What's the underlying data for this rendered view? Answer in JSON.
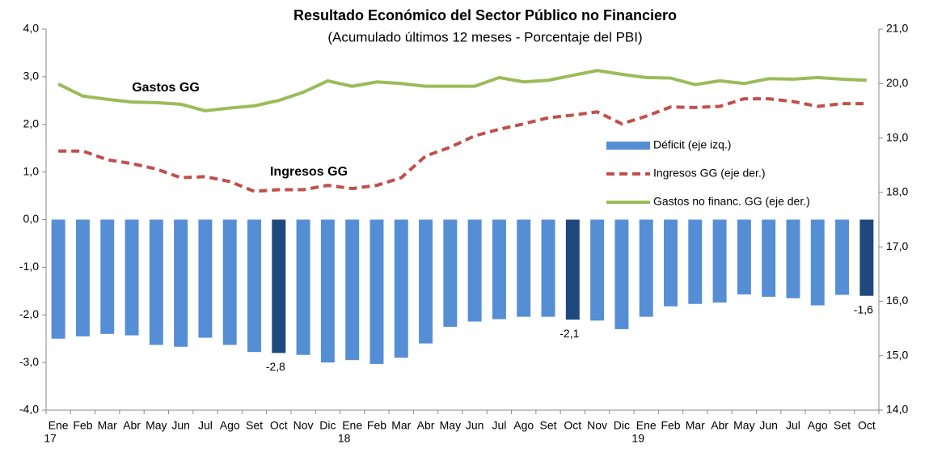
{
  "chart_data": {
    "type": "bar",
    "title": "Resultado Económico del Sector Público no Financiero",
    "subtitle": "(Acumulado últimos 12 meses - Porcentaje del PBI)",
    "categories": [
      "Ene",
      "Feb",
      "Mar",
      "Abr",
      "May",
      "Jun",
      "Jul",
      "Ago",
      "Set",
      "Oct",
      "Nov",
      "Dic",
      "Ene",
      "Feb",
      "Mar",
      "Abr",
      "May",
      "Jun",
      "Jul",
      "Ago",
      "Set",
      "Oct",
      "Nov",
      "Dic",
      "Ene",
      "Feb",
      "Mar",
      "Abr",
      "May",
      "Jun",
      "Jul",
      "Ago",
      "Set",
      "Oct"
    ],
    "years": [
      "17",
      "18",
      "19"
    ],
    "series": [
      {
        "name": "Déficit (eje izq.)",
        "type": "bar",
        "color": "#558ED5",
        "colors": [
          "#558ED5",
          "#558ED5",
          "#558ED5",
          "#558ED5",
          "#558ED5",
          "#558ED5",
          "#558ED5",
          "#558ED5",
          "#558ED5",
          "#1F497D",
          "#558ED5",
          "#558ED5",
          "#558ED5",
          "#558ED5",
          "#558ED5",
          "#558ED5",
          "#558ED5",
          "#558ED5",
          "#558ED5",
          "#558ED5",
          "#558ED5",
          "#1F497D",
          "#558ED5",
          "#558ED5",
          "#558ED5",
          "#558ED5",
          "#558ED5",
          "#558ED5",
          "#558ED5",
          "#558ED5",
          "#558ED5",
          "#558ED5",
          "#558ED5",
          "#1F497D"
        ],
        "values": [
          -2.5,
          -2.45,
          -2.4,
          -2.43,
          -2.63,
          -2.67,
          -2.48,
          -2.63,
          -2.78,
          -2.8,
          -2.84,
          -3.0,
          -2.95,
          -3.03,
          -2.9,
          -2.6,
          -2.25,
          -2.14,
          -2.09,
          -2.04,
          -2.04,
          -2.1,
          -2.12,
          -2.3,
          -2.04,
          -1.82,
          -1.77,
          -1.74,
          -1.57,
          -1.62,
          -1.65,
          -1.8,
          -1.58,
          -1.6
        ],
        "value_labels": [
          null,
          null,
          null,
          null,
          null,
          null,
          null,
          null,
          null,
          "-2,8",
          null,
          null,
          null,
          null,
          null,
          null,
          null,
          null,
          null,
          null,
          null,
          "-2,1",
          null,
          null,
          null,
          null,
          null,
          null,
          null,
          null,
          null,
          null,
          null,
          "-1,6"
        ]
      },
      {
        "name": "Ingresos GG (eje der.)",
        "type": "line",
        "axis": "y2",
        "color": "#C0504D",
        "dashed": true,
        "values": [
          18.76,
          18.76,
          18.6,
          18.53,
          18.43,
          18.27,
          18.29,
          18.2,
          18.02,
          18.05,
          18.05,
          18.13,
          18.07,
          18.13,
          18.27,
          18.67,
          18.83,
          19.04,
          19.16,
          19.26,
          19.37,
          19.42,
          19.48,
          19.26,
          19.4,
          19.57,
          19.56,
          19.58,
          19.72,
          19.72,
          19.67,
          19.58,
          19.63,
          19.63
        ]
      },
      {
        "name": "Gastos no financ. GG (eje der.)",
        "type": "line",
        "axis": "y2",
        "color": "#9BBB59",
        "dashed": false,
        "values": [
          19.99,
          19.77,
          19.71,
          19.66,
          19.65,
          19.62,
          19.5,
          19.55,
          19.59,
          19.69,
          19.84,
          20.05,
          19.95,
          20.03,
          20.0,
          19.95,
          19.95,
          19.95,
          20.11,
          20.03,
          20.06,
          20.15,
          20.24,
          20.17,
          20.11,
          20.1,
          19.98,
          20.05,
          20.0,
          20.09,
          20.08,
          20.11,
          20.08,
          20.06
        ]
      }
    ],
    "annotations": [
      "Gastos GG",
      "Ingresos GG"
    ],
    "ylim": [
      -4,
      4
    ],
    "yticks": [
      {
        "value": -4,
        "label": "-4,0"
      },
      {
        "value": -3,
        "label": "-3,0"
      },
      {
        "value": -2,
        "label": "-2,0"
      },
      {
        "value": -1,
        "label": "-1,0"
      },
      {
        "value": 0,
        "label": "0,0"
      },
      {
        "value": 1,
        "label": "1,0"
      },
      {
        "value": 2,
        "label": "2,0"
      },
      {
        "value": 3,
        "label": "3,0"
      },
      {
        "value": 4,
        "label": "4,0"
      }
    ],
    "y2lim": [
      14,
      21
    ],
    "y2ticks": [
      {
        "value": 14,
        "label": "14,0"
      },
      {
        "value": 15,
        "label": "15,0"
      },
      {
        "value": 16,
        "label": "16,0"
      },
      {
        "value": 17,
        "label": "17,0"
      },
      {
        "value": 18,
        "label": "18,0"
      },
      {
        "value": 19,
        "label": "19,0"
      },
      {
        "value": 20,
        "label": "20,0"
      },
      {
        "value": 21,
        "label": "21,0"
      }
    ],
    "grid": false,
    "legend": "right"
  }
}
